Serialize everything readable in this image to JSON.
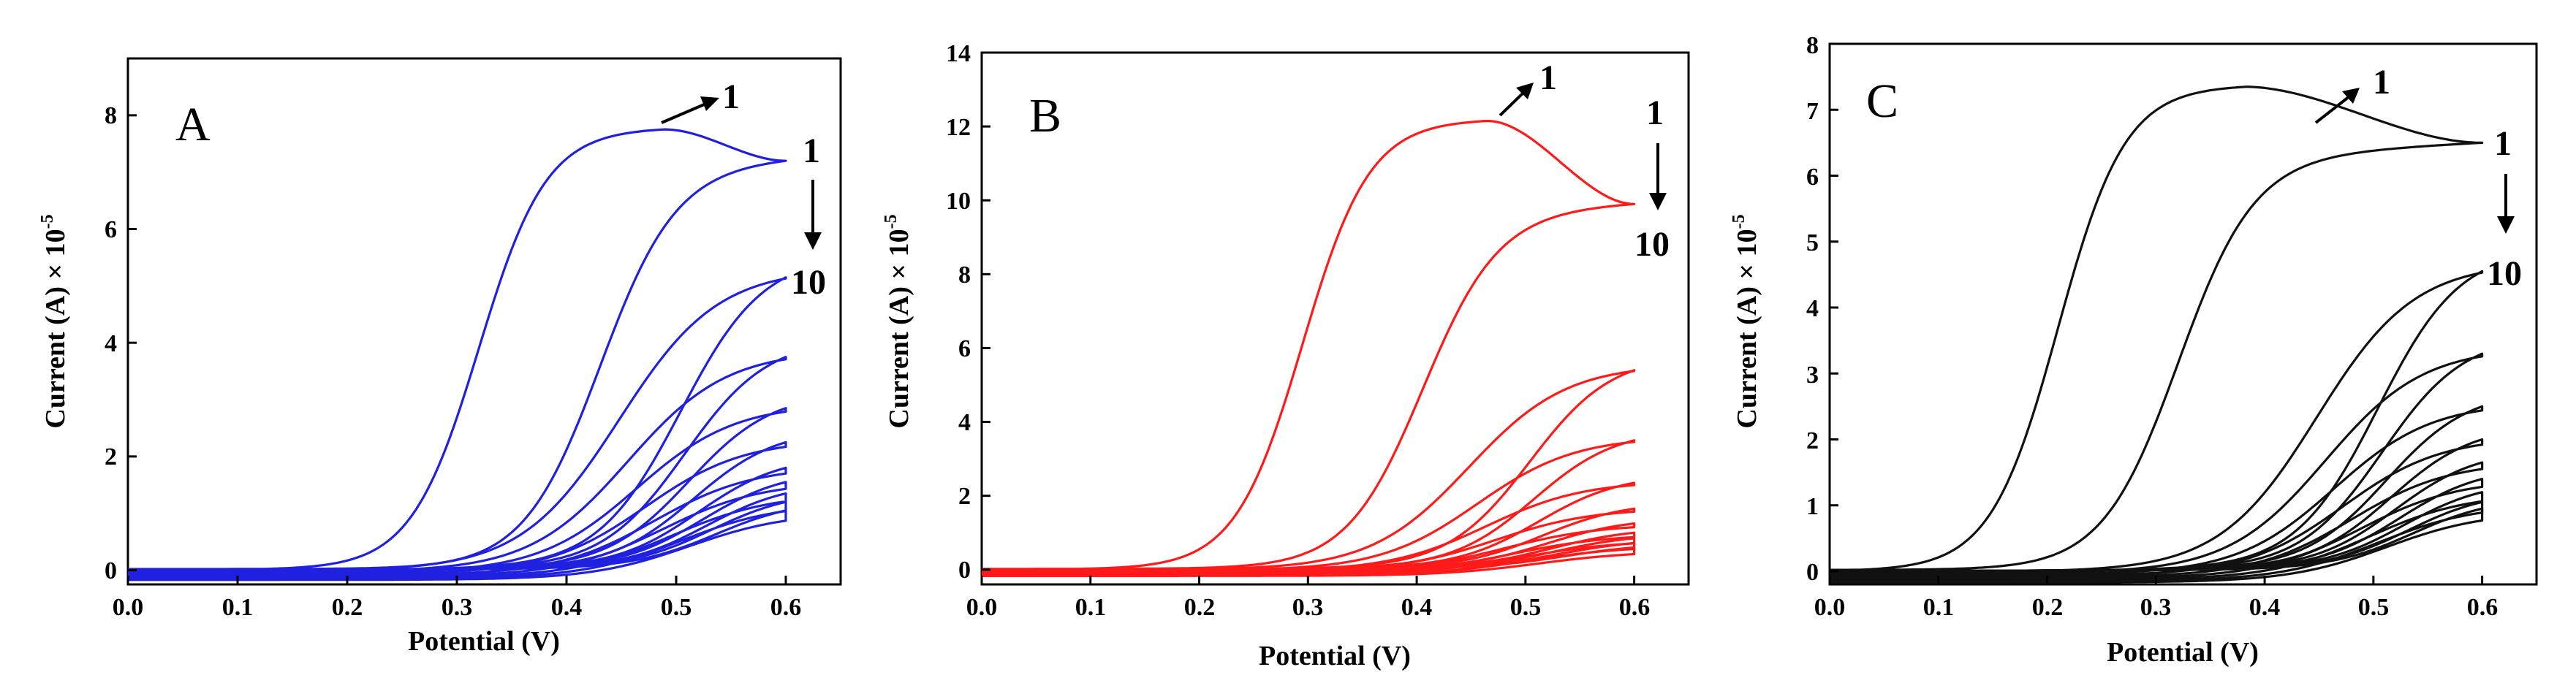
{
  "chart_data": [
    {
      "type": "line",
      "panel_label": "A",
      "xlabel": "Potential (V)",
      "ylabel": "Current (A) × 10",
      "ylabel_exponent": "-5",
      "xlim": [
        0.0,
        0.65
      ],
      "ylim": [
        -0.25,
        9.0
      ],
      "x_ticks": [
        "0.0",
        "0.1",
        "0.2",
        "0.3",
        "0.4",
        "0.5",
        "0.6"
      ],
      "y_ticks": [
        "0",
        "2",
        "4",
        "6",
        "8"
      ],
      "color": "#2020e0",
      "cycles": 10,
      "first_cycle_peak": {
        "x": 0.49,
        "y": 7.75
      },
      "end_currents": [
        7.2,
        5.15,
        3.75,
        2.85,
        2.25,
        1.8,
        1.55,
        1.35,
        1.2,
        1.05
      ],
      "annotations": {
        "peak_label": "1",
        "top_label": "1",
        "bottom_label": "10"
      }
    },
    {
      "type": "line",
      "panel_label": "B",
      "xlabel": "Potential (V)",
      "ylabel": "Current (A) × 10",
      "ylabel_exponent": "-5",
      "xlim": [
        0.0,
        0.65
      ],
      "ylim": [
        -0.4,
        14.0
      ],
      "x_ticks": [
        "0.0",
        "0.1",
        "0.2",
        "0.3",
        "0.4",
        "0.5",
        "0.6"
      ],
      "y_ticks": [
        "0",
        "2",
        "4",
        "6",
        "8",
        "10",
        "12",
        "14"
      ],
      "color": "#ff1a1a",
      "cycles": 10,
      "first_cycle_peak": {
        "x": 0.465,
        "y": 12.15
      },
      "end_currents": [
        9.9,
        5.4,
        3.5,
        2.35,
        1.65,
        1.25,
        1.0,
        0.85,
        0.72,
        0.6
      ],
      "annotations": {
        "peak_label": "1",
        "top_label": "1",
        "bottom_label": "10"
      }
    },
    {
      "type": "line",
      "panel_label": "C",
      "xlabel": "Potential (V)",
      "ylabel": "Current (A) × 10",
      "ylabel_exponent": "-5",
      "xlim": [
        0.0,
        0.65
      ],
      "ylim": [
        -0.2,
        8.0
      ],
      "x_ticks": [
        "0.0",
        "0.1",
        "0.2",
        "0.3",
        "0.4",
        "0.5",
        "0.6"
      ],
      "y_ticks": [
        "0",
        "1",
        "2",
        "3",
        "4",
        "5",
        "6",
        "7",
        "8"
      ],
      "color": "#111111",
      "cycles": 10,
      "first_cycle_peak": {
        "x": 0.38,
        "y": 7.35
      },
      "end_currents": [
        6.5,
        4.55,
        3.3,
        2.5,
        2.0,
        1.65,
        1.4,
        1.2,
        1.05,
        0.95
      ],
      "annotations": {
        "peak_label": "1",
        "top_label": "1",
        "bottom_label": "10"
      }
    }
  ]
}
